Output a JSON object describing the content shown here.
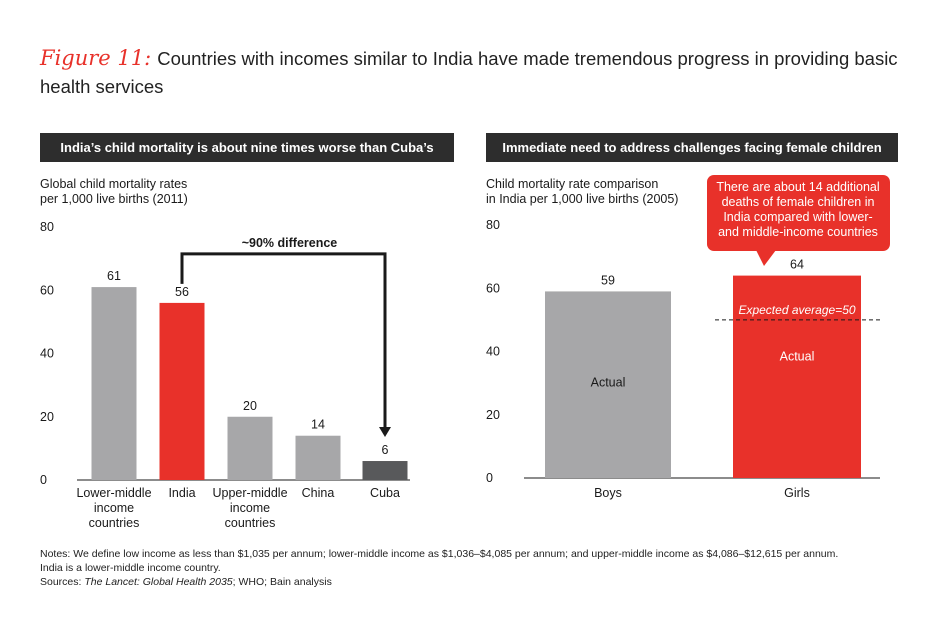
{
  "title": {
    "figure_label": "Figure 11:",
    "text": "Countries with incomes similar to India have made tremendous progress in providing basic health services"
  },
  "colors": {
    "red": "#e8312a",
    "gray": "#a7a7a9",
    "dark": "#58595b",
    "header": "#2d2d2d"
  },
  "chart_data": [
    {
      "type": "bar",
      "header": "India’s child mortality is about nine times worse than Cuba’s",
      "ylabel_line1": "Global child mortality rates",
      "ylabel_line2": "per 1,000 live births (2011)",
      "ylim": [
        0,
        80
      ],
      "yticks": [
        0,
        20,
        40,
        60,
        80
      ],
      "categories": [
        [
          "Lower-middle",
          "income",
          "countries"
        ],
        [
          "India"
        ],
        [
          "Upper-middle",
          "income",
          "countries"
        ],
        [
          "China"
        ],
        [
          "Cuba"
        ]
      ],
      "values": [
        61,
        56,
        20,
        14,
        6
      ],
      "bar_colors": [
        "#a7a7a9",
        "#e8312a",
        "#a7a7a9",
        "#a7a7a9",
        "#58595b"
      ],
      "annotation": "~90% difference"
    },
    {
      "type": "bar",
      "header": "Immediate need to address challenges facing female children",
      "ylabel_line1": "Child mortality rate comparison",
      "ylabel_line2": "in India per 1,000 live births (2005)",
      "ylim": [
        0,
        80
      ],
      "yticks": [
        0,
        20,
        40,
        60,
        80
      ],
      "categories": [
        [
          "Boys"
        ],
        [
          "Girls"
        ]
      ],
      "values": [
        59,
        64
      ],
      "bar_colors": [
        "#a7a7a9",
        "#e8312a"
      ],
      "bar_inner_labels": [
        "Actual",
        "Actual"
      ],
      "reference_line": {
        "value": 50,
        "label": "Expected average=50"
      },
      "callout": [
        "There are about 14 additional",
        "deaths of female children in",
        "India compared with lower-",
        "and middle-income countries"
      ]
    }
  ],
  "notes": {
    "line1": "Notes: We define low income as less than $1,035 per annum; lower-middle income as $1,036–$4,085 per annum; and upper-middle income as $4,086–$12,615 per annum.",
    "line2": "India is a lower-middle income country.",
    "sources_prefix": "Sources: ",
    "sources_italic": "The Lancet: Global Health 2035",
    "sources_rest": "; WHO; Bain analysis"
  }
}
